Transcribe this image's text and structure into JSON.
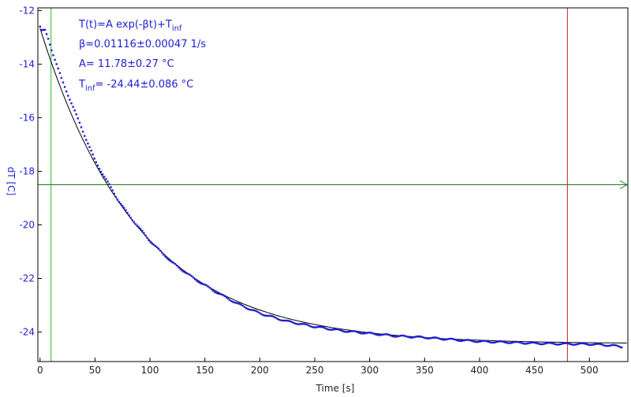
{
  "chart_data": {
    "type": "scatter",
    "xlabel": "Time [s]",
    "ylabel": "dT [C]",
    "xlim": [
      -2,
      535
    ],
    "ylim": [
      -25.1,
      -11.9
    ],
    "x_ticks": [
      0,
      50,
      100,
      150,
      200,
      250,
      300,
      350,
      400,
      450,
      500
    ],
    "y_ticks": [
      -12,
      -14,
      -16,
      -18,
      -20,
      -22,
      -24
    ],
    "x_tick_labels": [
      "0",
      "50",
      "100",
      "150",
      "200",
      "250",
      "300",
      "350",
      "400",
      "450",
      "500"
    ],
    "y_tick_labels": [
      "-12",
      "-14",
      "-16",
      "-18",
      "-20",
      "-22",
      "-24"
    ],
    "grid": false,
    "fit": {
      "model_text": "T(t)=A exp(-βt)+T",
      "model_sub": "inf",
      "beta_text": "β=0.01116±0.00047 1/s",
      "A_text": "A= 11.78±0.27 °C",
      "tinf_prefix": "T",
      "tinf_sub": "inf",
      "tinf_value_text": "= -24.44±0.086 °C",
      "A": 11.78,
      "beta": 0.01116,
      "T_inf": -24.44
    },
    "series": [
      {
        "role": "measured",
        "x": [
          0,
          2,
          4,
          6,
          8,
          10,
          15,
          20,
          30,
          40,
          50,
          60,
          70,
          80,
          90,
          100,
          120,
          140,
          160,
          180,
          200,
          225,
          250,
          275,
          300,
          325,
          350,
          375,
          400,
          425,
          450,
          475,
          500,
          510,
          520,
          530
        ],
        "y": [
          -12.6,
          -12.8,
          -12.7,
          -12.9,
          -13.1,
          -13.4,
          -14.0,
          -14.6,
          -15.6,
          -16.6,
          -17.6,
          -18.3,
          -19.0,
          -19.6,
          -20.1,
          -20.6,
          -21.4,
          -22.0,
          -22.5,
          -22.95,
          -23.3,
          -23.6,
          -23.8,
          -23.95,
          -24.05,
          -24.15,
          -24.2,
          -24.28,
          -24.35,
          -24.38,
          -24.42,
          -24.44,
          -24.45,
          -24.47,
          -24.5,
          -24.55
        ],
        "color": "#1f1fd0"
      },
      {
        "role": "fit",
        "color": "#000000"
      }
    ],
    "markers": {
      "vertical_green_x": 10,
      "vertical_red_x": 480,
      "horizontal_green_y": -18.5,
      "green_color": "#22bb22",
      "red_color": "#cc2222",
      "h_arrow_color": "#1a7a1a"
    },
    "colors": {
      "text": "#1f1fd0",
      "frame": "#000000"
    }
  }
}
